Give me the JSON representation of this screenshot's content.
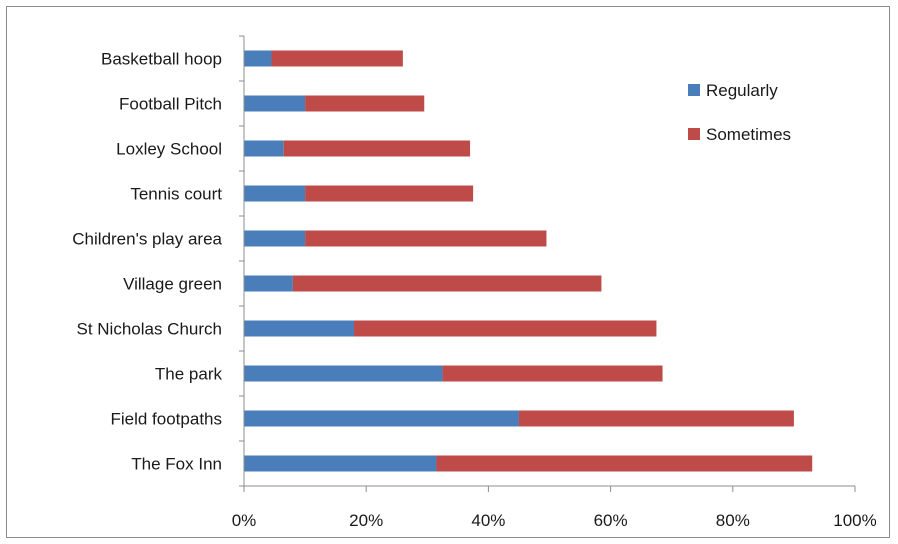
{
  "chart_data": {
    "type": "bar",
    "orientation": "horizontal",
    "stacked": true,
    "categories": [
      "Basketball hoop",
      "Football Pitch",
      "Loxley School",
      "Tennis court",
      "Children's play area",
      "Village green",
      "St Nicholas Church",
      "The park",
      "Field footpaths",
      "The Fox Inn"
    ],
    "series": [
      {
        "name": "Regularly",
        "color": "#4a7ebb",
        "values": [
          4.5,
          10,
          6.5,
          10,
          10,
          8,
          18,
          32.5,
          45,
          31.5
        ]
      },
      {
        "name": "Sometimes",
        "color": "#be4b48",
        "values": [
          21.5,
          19.5,
          30.5,
          27.5,
          39.5,
          50.5,
          49.5,
          36,
          45,
          61.5
        ]
      }
    ],
    "x_ticks": [
      "0%",
      "20%",
      "40%",
      "60%",
      "80%",
      "100%"
    ],
    "xlim": [
      0,
      100
    ],
    "legend_position": "top-right",
    "grid": false
  }
}
